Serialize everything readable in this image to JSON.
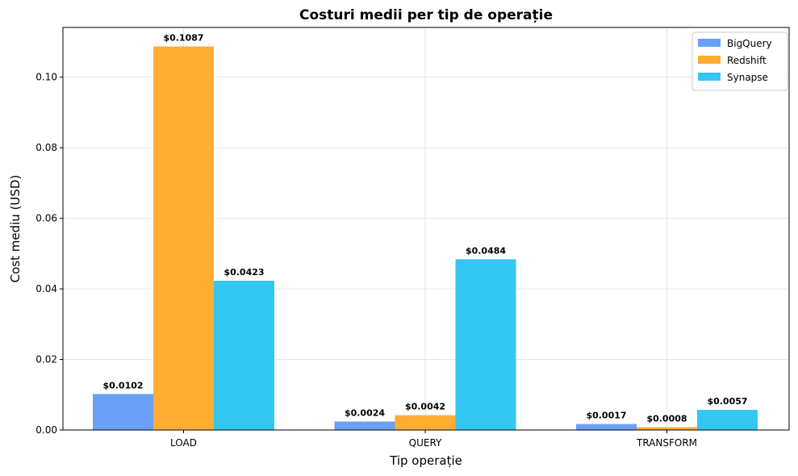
{
  "chart_data": {
    "type": "bar",
    "title": "Costuri medii per tip de operație",
    "xlabel": "Tip operație",
    "ylabel": "Cost mediu (USD)",
    "categories": [
      "LOAD",
      "QUERY",
      "TRANSFORM"
    ],
    "ylim": [
      0,
      0.1141
    ],
    "yticks": [
      0.0,
      0.02,
      0.04,
      0.06,
      0.08,
      0.1
    ],
    "ytick_labels": [
      "0.00",
      "0.02",
      "0.04",
      "0.06",
      "0.08",
      "0.10"
    ],
    "grid": true,
    "legend_position": "top-right",
    "series": [
      {
        "name": "BigQuery",
        "color": "#6aa0f7",
        "values": [
          0.0102,
          0.0024,
          0.0017
        ],
        "labels": [
          "$0.0102",
          "$0.0024",
          "$0.0017"
        ]
      },
      {
        "name": "Redshift",
        "color": "#ffad33",
        "values": [
          0.1087,
          0.0042,
          0.0008
        ],
        "labels": [
          "$0.1087",
          "$0.0042",
          "$0.0008"
        ]
      },
      {
        "name": "Synapse",
        "color": "#33c7f2",
        "values": [
          0.0423,
          0.0484,
          0.0057
        ],
        "labels": [
          "$0.0423",
          "$0.0484",
          "$0.0057"
        ]
      }
    ]
  }
}
